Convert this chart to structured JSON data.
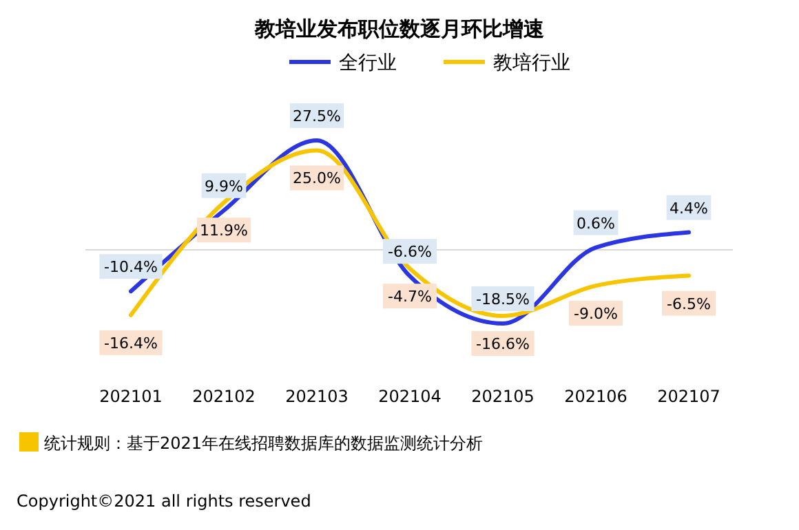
{
  "chart_data": {
    "type": "line",
    "title": "教培业发布职位数逐月环比增速",
    "categories": [
      "202101",
      "202102",
      "202103",
      "202104",
      "202105",
      "202106",
      "202107"
    ],
    "series": [
      {
        "name": "全行业",
        "color": "#2b35e0",
        "values": [
          -10.4,
          9.9,
          27.5,
          -6.6,
          -18.5,
          0.6,
          4.4
        ],
        "value_labels": [
          "-10.4%",
          "9.9%",
          "27.5%",
          "-6.6%",
          "-18.5%",
          "0.6%",
          "4.4%"
        ]
      },
      {
        "name": "教培行业",
        "color": "#f7c400",
        "values": [
          -16.4,
          11.9,
          25.0,
          -4.7,
          -16.6,
          -9.0,
          -6.5
        ],
        "value_labels": [
          "-16.4%",
          "11.9%",
          "25.0%",
          "-4.7%",
          "-16.6%",
          "-9.0%",
          "-6.5%"
        ]
      }
    ],
    "legend": "top right",
    "marker": "none",
    "line_style": "solid",
    "annotations": [
      "统计规则：基于2021年在线招聘数据库的数据监测统计分析",
      "Copyright©2021 all rights reserved"
    ]
  }
}
